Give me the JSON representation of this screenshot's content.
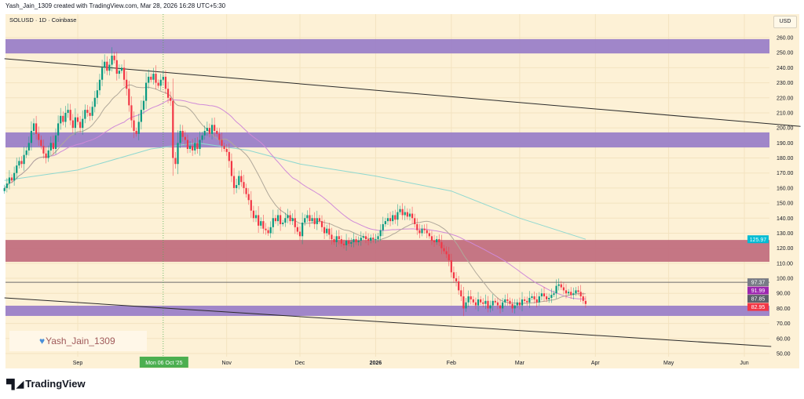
{
  "caption": "Yash_Jain_1309 created with TradingView.com, Mar 28, 2026 16:28 UTC+5:30",
  "symbol_line": "SOLUSD · 1D · Coinbase",
  "currency": "USD",
  "watermark": "Yash_Jain_1309",
  "logo_text": "TradingView",
  "colors": {
    "background": "#fdf1d6",
    "up": "#089981",
    "down": "#f23645",
    "zone_purple": "#9b7fc8",
    "zone_red": "#c26f80",
    "ma_fast": "#b0a89a",
    "ma_mid": "#d08ad8",
    "ma_slow": "#8fd8d0",
    "crosshair": "#4caf50"
  },
  "chart_data": {
    "type": "candlestick",
    "title": "SOLUSD · 1D · Coinbase",
    "start_date": "2025-08-02",
    "closes": [
      160,
      163,
      167,
      165,
      170,
      175,
      178,
      176,
      182,
      185,
      190,
      198,
      203,
      196,
      192,
      188,
      183,
      180,
      185,
      190,
      186,
      195,
      203,
      208,
      204,
      210,
      212,
      205,
      200,
      207,
      204,
      200,
      206,
      212,
      210,
      208,
      214,
      220,
      225,
      232,
      240,
      244,
      238,
      242,
      248,
      245,
      236,
      238,
      240,
      232,
      226,
      215,
      205,
      198,
      196,
      204,
      212,
      218,
      230,
      234,
      232,
      236,
      230,
      228,
      232,
      234,
      226,
      220,
      218,
      180,
      176,
      190,
      198,
      194,
      192,
      186,
      188,
      185,
      190,
      186,
      192,
      195,
      198,
      200,
      196,
      202,
      198,
      196,
      192,
      188,
      186,
      184,
      178,
      168,
      160,
      162,
      168,
      164,
      160,
      156,
      152,
      145,
      140,
      142,
      135,
      138,
      133,
      132,
      130,
      134,
      140,
      138,
      142,
      136,
      137,
      140,
      142,
      138,
      140,
      134,
      131,
      128,
      137,
      140,
      142,
      138,
      140,
      136,
      140,
      138,
      134,
      130,
      133,
      129,
      126,
      124,
      128,
      126,
      123,
      122,
      125,
      123,
      124,
      126,
      124,
      125,
      127,
      128,
      126,
      125,
      127,
      126,
      126,
      128,
      132,
      136,
      138,
      140,
      138,
      142,
      139,
      144,
      146,
      142,
      144,
      141,
      143,
      140,
      136,
      132,
      130,
      133,
      132,
      130,
      128,
      125,
      124,
      126,
      124,
      120,
      118,
      116,
      112,
      104,
      100,
      98,
      92,
      88,
      80,
      84,
      88,
      86,
      84,
      82,
      86,
      84,
      83,
      85,
      80,
      82,
      85,
      84,
      82,
      80,
      84,
      86,
      85,
      83,
      80,
      82,
      84,
      82,
      86,
      85,
      84,
      87,
      88,
      86,
      84,
      88,
      90,
      88,
      86,
      87,
      89,
      90,
      95,
      96,
      94,
      92,
      90,
      91,
      89,
      90,
      92,
      91,
      88,
      85,
      82.95
    ],
    "slow_ma_points": [
      [
        "2025-08-02",
        165
      ],
      [
        "2025-09-01",
        172
      ],
      [
        "2025-10-01",
        186
      ],
      [
        "2025-10-20",
        190
      ],
      [
        "2025-11-10",
        185
      ],
      [
        "2025-12-01",
        176
      ],
      [
        "2026-01-01",
        168
      ],
      [
        "2026-02-01",
        158
      ],
      [
        "2026-03-01",
        140
      ],
      [
        "2026-03-28",
        125.97
      ]
    ],
    "zones": [
      {
        "from": 249.5,
        "to": 259,
        "color": "zone_purple"
      },
      {
        "from": 187,
        "to": 197,
        "color": "zone_purple"
      },
      {
        "from": 111,
        "to": 125.5,
        "color": "zone_red"
      },
      {
        "from": 75,
        "to": 81.8,
        "color": "zone_purple"
      }
    ],
    "horizontal_line": 97.37,
    "trendlines": [
      {
        "start": [
          "2025-08-02",
          246
        ],
        "end": [
          "2026-06-24",
          201
        ]
      },
      {
        "start": [
          "2025-08-02",
          87
        ],
        "end": [
          "2026-06-12",
          54.7
        ]
      }
    ],
    "ylim": [
      50,
      260
    ],
    "y_ticks": [
      "260.00",
      "250.00",
      "240.00",
      "230.00",
      "220.00",
      "210.00",
      "200.00",
      "190.00",
      "180.00",
      "170.00",
      "160.00",
      "150.00",
      "140.00",
      "130.00",
      "120.00",
      "110.00",
      "100.00",
      "90.00",
      "80.00",
      "70.00",
      "60.00",
      "50.00"
    ],
    "x_ticks": [
      {
        "label": "Sep",
        "date": "2025-09-01"
      },
      {
        "label": "Nov",
        "date": "2025-11-01"
      },
      {
        "label": "Dec",
        "date": "2025-12-01"
      },
      {
        "label": "2026",
        "date": "2026-01-01"
      },
      {
        "label": "Feb",
        "date": "2026-02-01"
      },
      {
        "label": "Mar",
        "date": "2026-03-01"
      },
      {
        "label": "Apr",
        "date": "2026-04-01"
      },
      {
        "label": "May",
        "date": "2026-05-01"
      },
      {
        "label": "Jun",
        "date": "2026-06-01"
      }
    ],
    "crosshair": {
      "label": "Mon 06 Oct '25",
      "date": "2025-10-06"
    },
    "price_badges": [
      {
        "value": "125.97",
        "price": 125.97,
        "color": "#00bcd4"
      },
      {
        "value": "97.37",
        "price": 97.37,
        "color": "#787b86"
      },
      {
        "value": "91.99",
        "price": 91.99,
        "color": "#9c27b0"
      },
      {
        "value": "87.85",
        "price": 87.85,
        "color": "#5d606b"
      },
      {
        "value": "82.95",
        "price": 82.95,
        "color": "#f23645"
      }
    ]
  }
}
